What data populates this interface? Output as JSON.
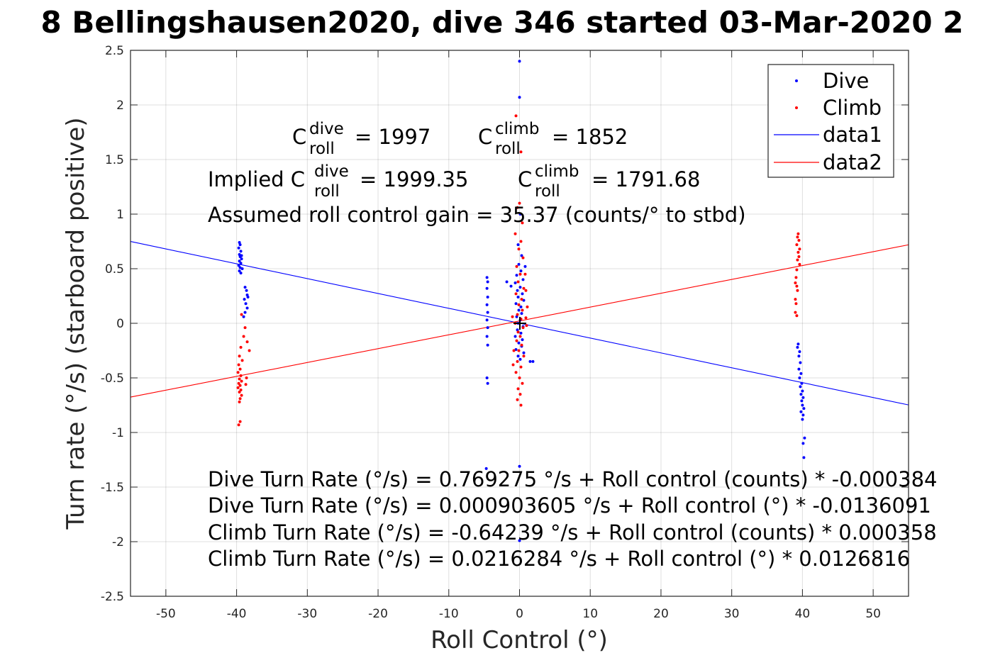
{
  "chart_data": {
    "type": "scatter",
    "title": "8 Bellingshausen2020, dive 346 started 03-Mar-2020 2",
    "xlabel": "Roll Control (°)",
    "ylabel": "Turn rate (°/s) (starboard positive)",
    "xlim": [
      -55,
      55
    ],
    "ylim": [
      -2.5,
      2.5
    ],
    "xticks": [
      -50,
      -40,
      -30,
      -20,
      -10,
      0,
      10,
      20,
      30,
      40,
      50
    ],
    "yticks": [
      -2.5,
      -2,
      -1.5,
      -1,
      -0.5,
      0,
      0.5,
      1,
      1.5,
      2,
      2.5
    ],
    "grid": true,
    "legend_position": "top-right",
    "series": [
      {
        "name": "Dive",
        "kind": "points",
        "color": "#0000ff",
        "points": [
          [
            -39.6,
            0.74
          ],
          [
            -39.5,
            0.72
          ],
          [
            -39.7,
            0.69
          ],
          [
            -39.4,
            0.66
          ],
          [
            -39.6,
            0.63
          ],
          [
            -39.5,
            0.61
          ],
          [
            -39.3,
            0.59
          ],
          [
            -39.6,
            0.57
          ],
          [
            -39.4,
            0.55
          ],
          [
            -39.7,
            0.53
          ],
          [
            -39.5,
            0.51
          ],
          [
            -39.2,
            0.5
          ],
          [
            -39.6,
            0.48
          ],
          [
            -39.4,
            0.46
          ],
          [
            -39.3,
            0.62
          ],
          [
            -38.8,
            0.33
          ],
          [
            -38.6,
            0.3
          ],
          [
            -38.5,
            0.26
          ],
          [
            -38.9,
            0.22
          ],
          [
            -38.7,
            0.18
          ],
          [
            -38.5,
            0.14
          ],
          [
            -38.8,
            0.1
          ],
          [
            -38.4,
            0.24
          ],
          [
            -39.0,
            0.06
          ],
          [
            -4.6,
            0.42
          ],
          [
            -4.5,
            0.38
          ],
          [
            -4.6,
            0.32
          ],
          [
            -4.5,
            0.24
          ],
          [
            -4.6,
            0.17
          ],
          [
            -4.5,
            0.1
          ],
          [
            -4.6,
            0.03
          ],
          [
            -4.5,
            -0.04
          ],
          [
            -4.6,
            -0.12
          ],
          [
            -4.5,
            -0.2
          ],
          [
            -4.6,
            -0.5
          ],
          [
            -4.5,
            -0.55
          ],
          [
            -4.7,
            -1.33
          ],
          [
            0.0,
            2.4
          ],
          [
            0.0,
            2.07
          ],
          [
            0.1,
            1.0
          ],
          [
            -0.2,
            0.72
          ],
          [
            0.3,
            0.62
          ],
          [
            -0.1,
            0.54
          ],
          [
            0.2,
            0.48
          ],
          [
            -0.4,
            0.44
          ],
          [
            0.5,
            0.4
          ],
          [
            -0.6,
            0.37
          ],
          [
            0.1,
            0.33
          ],
          [
            -0.3,
            0.3
          ],
          [
            0.4,
            0.27
          ],
          [
            -0.2,
            0.24
          ],
          [
            0.6,
            0.21
          ],
          [
            -0.5,
            0.18
          ],
          [
            0.2,
            0.15
          ],
          [
            -0.1,
            0.12
          ],
          [
            0.3,
            0.09
          ],
          [
            -0.4,
            0.06
          ],
          [
            0.1,
            0.03
          ],
          [
            -0.2,
            0.0
          ],
          [
            0.5,
            -0.03
          ],
          [
            -0.3,
            -0.06
          ],
          [
            0.2,
            -0.09
          ],
          [
            -0.6,
            -0.12
          ],
          [
            0.4,
            -0.15
          ],
          [
            -0.1,
            -0.18
          ],
          [
            0.3,
            -0.21
          ],
          [
            -0.5,
            -0.24
          ],
          [
            0.6,
            -0.27
          ],
          [
            -0.2,
            -0.3
          ],
          [
            0.1,
            -0.33
          ],
          [
            1.5,
            -0.35
          ],
          [
            1.9,
            -0.35
          ],
          [
            -1.8,
            0.38
          ],
          [
            -1.2,
            0.34
          ],
          [
            0.8,
            0.52
          ],
          [
            0.0,
            -1.31
          ],
          [
            0.0,
            -1.99
          ],
          [
            39.4,
            -0.19
          ],
          [
            39.3,
            -0.22
          ],
          [
            39.6,
            -0.26
          ],
          [
            39.5,
            -0.3
          ],
          [
            39.7,
            -0.36
          ],
          [
            39.5,
            -0.42
          ],
          [
            39.8,
            -0.46
          ],
          [
            39.6,
            -0.5
          ],
          [
            39.9,
            -0.55
          ],
          [
            39.7,
            -0.58
          ],
          [
            40.0,
            -0.62
          ],
          [
            39.8,
            -0.65
          ],
          [
            40.1,
            -0.68
          ],
          [
            39.9,
            -0.71
          ],
          [
            40.0,
            -0.75
          ],
          [
            40.2,
            -0.78
          ],
          [
            39.8,
            -0.81
          ],
          [
            40.1,
            -0.84
          ],
          [
            40.0,
            -0.88
          ],
          [
            40.3,
            -1.05
          ],
          [
            40.1,
            -1.1
          ],
          [
            40.2,
            -1.23
          ]
        ]
      },
      {
        "name": "Climb",
        "kind": "points",
        "color": "#ff0000",
        "points": [
          [
            -39.3,
            0.08
          ],
          [
            -38.8,
            -0.04
          ],
          [
            -39.0,
            -0.12
          ],
          [
            -38.5,
            -0.17
          ],
          [
            -39.4,
            -0.22
          ],
          [
            -38.2,
            -0.25
          ],
          [
            -39.6,
            -0.3
          ],
          [
            -39.2,
            -0.34
          ],
          [
            -39.7,
            -0.38
          ],
          [
            -39.5,
            -0.42
          ],
          [
            -39.8,
            -0.45
          ],
          [
            -39.4,
            -0.48
          ],
          [
            -39.6,
            -0.51
          ],
          [
            -39.3,
            -0.53
          ],
          [
            -39.7,
            -0.55
          ],
          [
            -39.5,
            -0.57
          ],
          [
            -39.8,
            -0.59
          ],
          [
            -39.4,
            -0.61
          ],
          [
            -39.6,
            -0.63
          ],
          [
            -39.3,
            -0.66
          ],
          [
            -39.5,
            -0.69
          ],
          [
            -39.6,
            -0.72
          ],
          [
            -38.6,
            -0.5
          ],
          [
            -38.7,
            -0.56
          ],
          [
            -39.5,
            -0.9
          ],
          [
            -39.7,
            -0.93
          ],
          [
            -0.5,
            1.9
          ],
          [
            0.2,
            1.57
          ],
          [
            0.0,
            1.1
          ],
          [
            -0.3,
            1.06
          ],
          [
            0.4,
            0.92
          ],
          [
            -0.6,
            0.82
          ],
          [
            0.2,
            0.75
          ],
          [
            -0.1,
            0.68
          ],
          [
            0.5,
            0.6
          ],
          [
            -0.4,
            0.52
          ],
          [
            0.1,
            0.45
          ],
          [
            -0.2,
            0.38
          ],
          [
            0.6,
            0.32
          ],
          [
            -0.5,
            0.27
          ],
          [
            0.3,
            0.22
          ],
          [
            -0.1,
            0.17
          ],
          [
            0.4,
            0.12
          ],
          [
            -0.3,
            0.08
          ],
          [
            0.2,
            0.04
          ],
          [
            -0.6,
            0.0
          ],
          [
            0.5,
            -0.04
          ],
          [
            -0.2,
            -0.08
          ],
          [
            0.1,
            -0.12
          ],
          [
            -0.4,
            -0.16
          ],
          [
            0.3,
            -0.2
          ],
          [
            -0.1,
            -0.25
          ],
          [
            0.6,
            -0.3
          ],
          [
            -0.3,
            -0.35
          ],
          [
            0.2,
            -0.4
          ],
          [
            -0.5,
            -0.45
          ],
          [
            0.0,
            -0.5
          ],
          [
            0.4,
            -0.55
          ],
          [
            -0.2,
            -0.6
          ],
          [
            0.1,
            -0.65
          ],
          [
            -0.3,
            -0.7
          ],
          [
            0.2,
            -0.75
          ],
          [
            0.8,
            0.45
          ],
          [
            0.9,
            0.3
          ],
          [
            1.1,
            0.15
          ],
          [
            -0.8,
            -0.25
          ],
          [
            -0.9,
            -0.38
          ],
          [
            -1.0,
            0.06
          ],
          [
            0.9,
            0.05
          ],
          [
            1.0,
            -0.02
          ],
          [
            39.4,
            0.82
          ],
          [
            39.3,
            0.79
          ],
          [
            39.5,
            0.76
          ],
          [
            39.2,
            0.72
          ],
          [
            39.6,
            0.68
          ],
          [
            39.4,
            0.65
          ],
          [
            39.5,
            0.61
          ],
          [
            39.3,
            0.58
          ],
          [
            39.6,
            0.54
          ],
          [
            39.2,
            0.49
          ],
          [
            39.1,
            0.42
          ],
          [
            39.0,
            0.37
          ],
          [
            39.2,
            0.34
          ],
          [
            39.3,
            0.3
          ],
          [
            39.0,
            0.22
          ],
          [
            39.1,
            0.18
          ],
          [
            39.0,
            0.1
          ],
          [
            39.2,
            0.07
          ]
        ]
      },
      {
        "name": "data1",
        "kind": "line",
        "color": "#0000ff",
        "x": [
          -55,
          55
        ],
        "y": [
          0.7494,
          -0.7476
        ]
      },
      {
        "name": "data2",
        "kind": "line",
        "color": "#ff0000",
        "x": [
          -55,
          55
        ],
        "y": [
          -0.6759,
          0.7191
        ]
      }
    ],
    "annotations": {
      "c_dive_label": "C",
      "c_dive_sup": "dive",
      "c_dive_sub": "roll",
      "c_dive_value": "= 1997",
      "c_climb_label": "C",
      "c_climb_sup": "climb",
      "c_climb_sub": "roll",
      "c_climb_value": "= 1852",
      "implied_prefix": "Implied C",
      "implied_dive_sup": "dive",
      "implied_dive_sub": "roll",
      "implied_dive_value": "= 1999.35",
      "implied_climb_label": "C",
      "implied_climb_sup": "climb",
      "implied_climb_sub": "roll",
      "implied_climb_value": "= 1791.68",
      "gain": "Assumed roll control gain = 35.37 (counts/° to stbd)",
      "fit_lines": [
        "Dive Turn Rate (°/s) = 0.769275 °/s + Roll control (counts) * -0.000384",
        "Dive Turn Rate (°/s) = 0.000903605 °/s + Roll control (°) * -0.0136091",
        "Climb Turn Rate (°/s) = -0.64239 °/s + Roll control (counts) * 0.000358",
        "Climb Turn Rate (°/s) = 0.0216284 °/s + Roll control (°) * 0.0126816"
      ]
    }
  }
}
